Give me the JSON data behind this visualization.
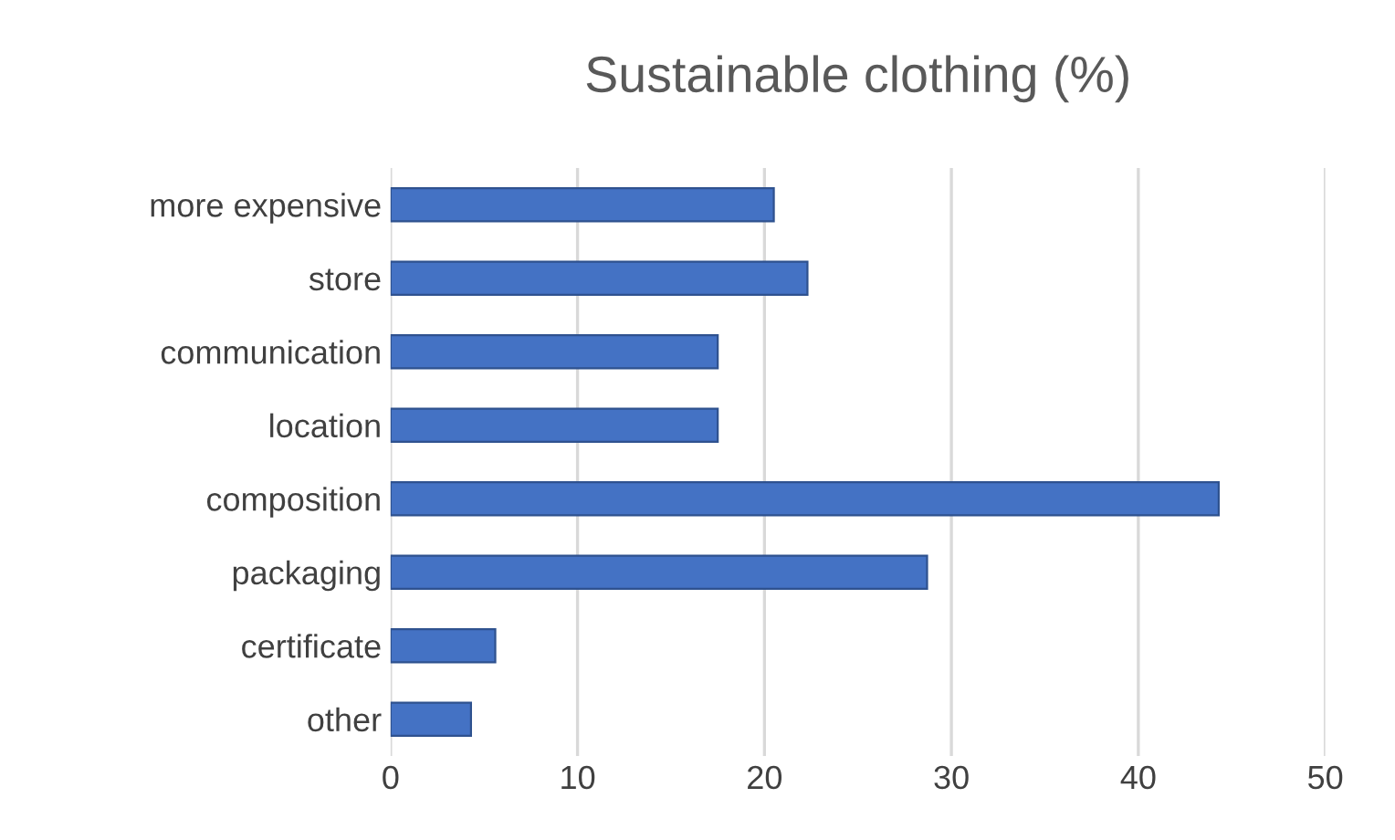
{
  "chart_data": {
    "type": "bar",
    "orientation": "horizontal",
    "title": "Sustainable clothing (%)",
    "categories": [
      "more expensive",
      "store",
      "communication",
      "location",
      "composition",
      "packaging",
      "certificate",
      "other"
    ],
    "values": [
      20.5,
      22.3,
      17.5,
      17.5,
      44.3,
      28.7,
      5.6,
      4.3
    ],
    "color": "#4472c4",
    "xlim": [
      0,
      50
    ],
    "xticks": [
      0,
      10,
      20,
      30,
      40,
      50
    ],
    "grid": "x"
  }
}
